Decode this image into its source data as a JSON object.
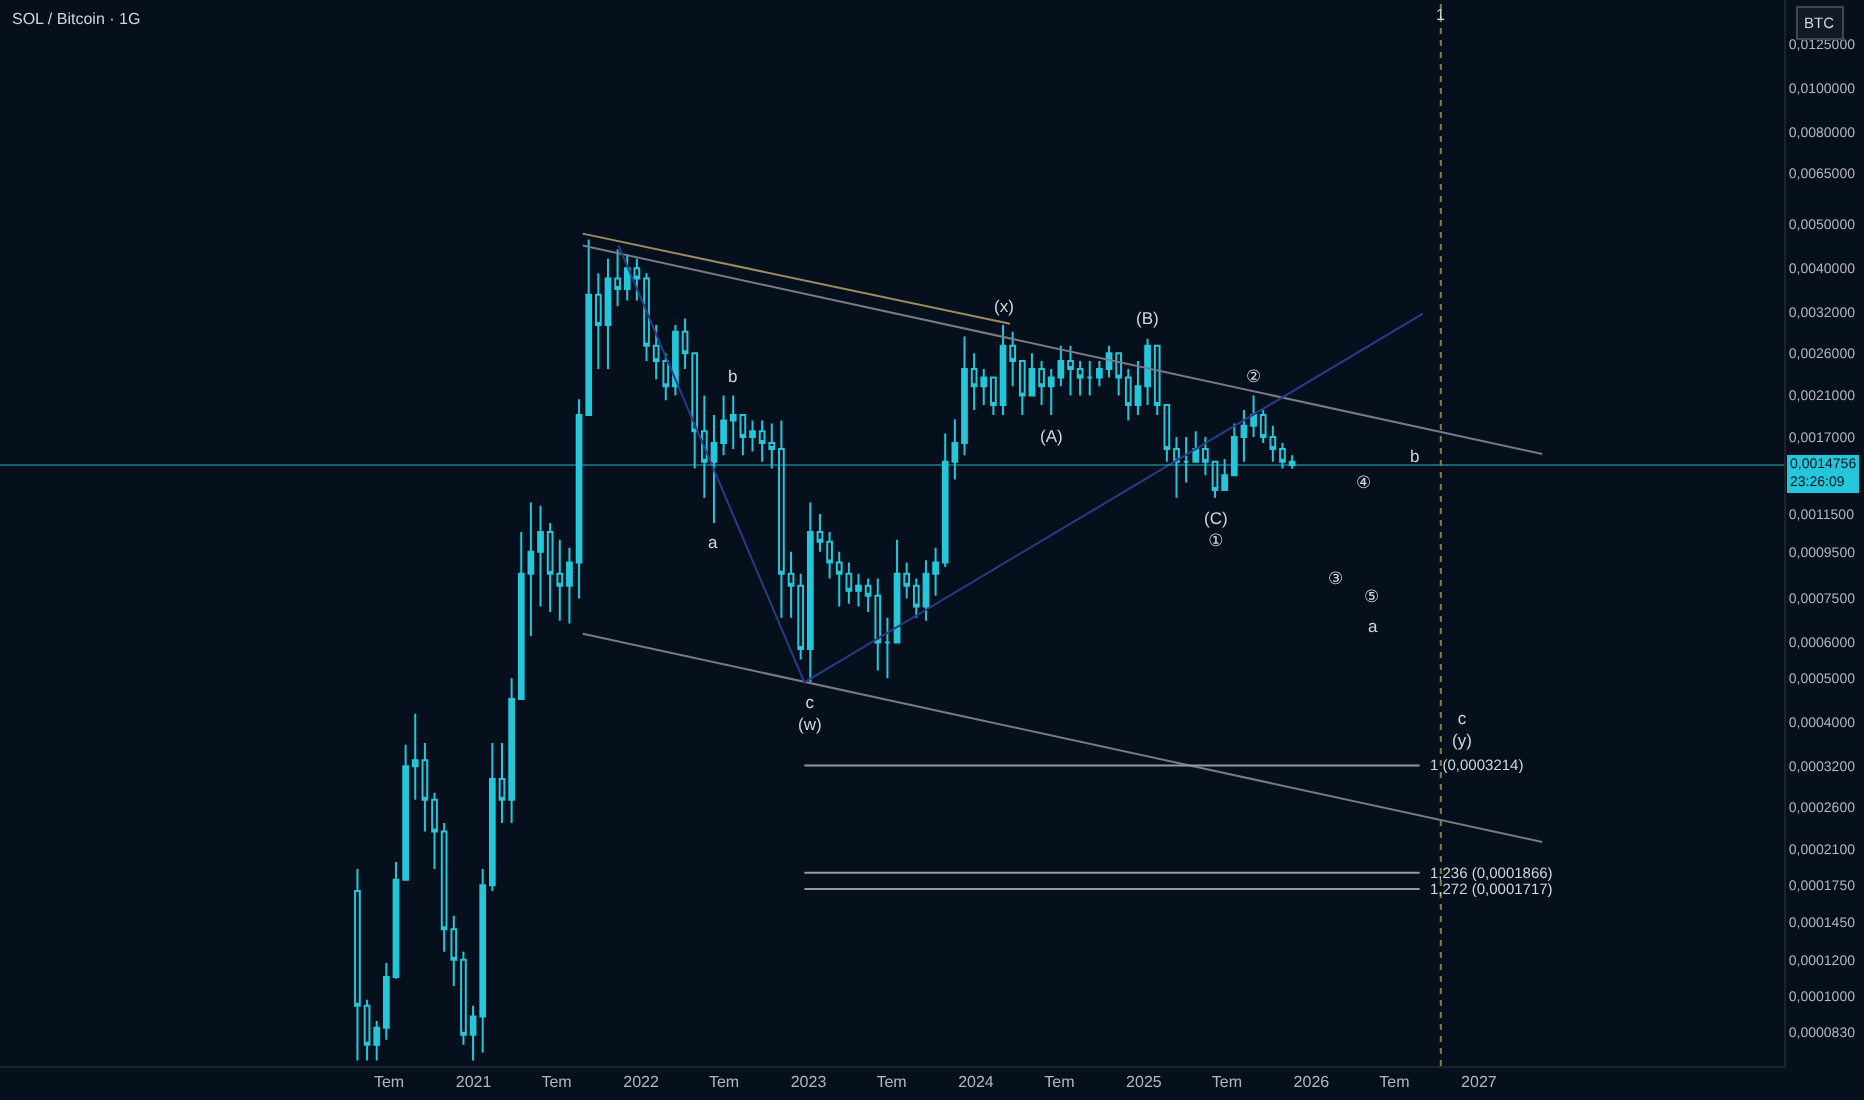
{
  "chart_data": {
    "type": "candlestick",
    "title": "SOL / Bitcoin · 1G",
    "ylabel": "BTC",
    "log": "y",
    "color": "#26c6da",
    "x": [
      "2020-04-23",
      "2020-05-14",
      "2020-06-04",
      "2020-06-25",
      "2020-07-16",
      "2020-08-06",
      "2020-08-27",
      "2020-09-17",
      "2020-10-08",
      "2020-10-29",
      "2020-11-19",
      "2020-12-10",
      "2020-12-31",
      "2021-01-21",
      "2021-02-11",
      "2021-03-04",
      "2021-03-25",
      "2021-04-15",
      "2021-05-06",
      "2021-05-27",
      "2021-06-17",
      "2021-07-08",
      "2021-07-29",
      "2021-08-19",
      "2021-09-09",
      "2021-09-30",
      "2021-10-21",
      "2021-11-11",
      "2021-12-02",
      "2021-12-23",
      "2022-01-13",
      "2022-02-03",
      "2022-02-24",
      "2022-03-17",
      "2022-04-07",
      "2022-04-28",
      "2022-05-19",
      "2022-06-09",
      "2022-06-30",
      "2022-07-21",
      "2022-08-11",
      "2022-09-01",
      "2022-09-22",
      "2022-10-13",
      "2022-11-03",
      "2022-11-24",
      "2022-12-15",
      "2023-01-05",
      "2023-01-26",
      "2023-02-16",
      "2023-03-09",
      "2023-03-30",
      "2023-04-20",
      "2023-05-11",
      "2023-06-01",
      "2023-06-22",
      "2023-07-13",
      "2023-08-03",
      "2023-08-24",
      "2023-09-14",
      "2023-10-05",
      "2023-10-26",
      "2023-11-16",
      "2023-12-07",
      "2023-12-28",
      "2024-01-18",
      "2024-02-08",
      "2024-02-29",
      "2024-03-21",
      "2024-04-11",
      "2024-05-02",
      "2024-05-23",
      "2024-06-13",
      "2024-07-04",
      "2024-07-25",
      "2024-08-15",
      "2024-09-05",
      "2024-09-26",
      "2024-10-17",
      "2024-11-07",
      "2024-11-28",
      "2024-12-19",
      "2025-01-09",
      "2025-01-30",
      "2025-02-20",
      "2025-03-13",
      "2025-04-03",
      "2025-04-24",
      "2025-05-15",
      "2025-06-05",
      "2025-06-26",
      "2025-07-17",
      "2025-08-07",
      "2025-08-28",
      "2025-09-18",
      "2025-10-09",
      "2025-10-30",
      "2025-11-20"
    ],
    "ohlc": [
      [
        0.00017,
        0.00019,
        7.2e-05,
        9.5e-05
      ],
      [
        9.5e-05,
        9.8e-05,
        7.2e-05,
        7.8e-05
      ],
      [
        7.8e-05,
        8.8e-05,
        7.2e-05,
        8.5e-05
      ],
      [
        8.5e-05,
        0.000118,
        8e-05,
        0.00011
      ],
      [
        0.00011,
        0.000197,
        0.000109,
        0.00018
      ],
      [
        0.00018,
        0.000357,
        0.00018,
        0.00032
      ],
      [
        0.00032,
        0.000418,
        0.00027,
        0.00033
      ],
      [
        0.00033,
        0.00036,
        0.00023,
        0.00027
      ],
      [
        0.00027,
        0.00028,
        0.00019,
        0.00023
      ],
      [
        0.00023,
        0.00024,
        0.000125,
        0.00014
      ],
      [
        0.00014,
        0.00015,
        0.000105,
        0.00012
      ],
      [
        0.00012,
        0.000125,
        7.8e-05,
        8.2e-05
      ],
      [
        8.2e-05,
        9.5e-05,
        7.2e-05,
        9e-05
      ],
      [
        9e-05,
        0.00019,
        7.5e-05,
        0.000175
      ],
      [
        0.000175,
        0.00036,
        0.00017,
        0.0003
      ],
      [
        0.0003,
        0.00036,
        0.00024,
        0.00027
      ],
      [
        0.00027,
        0.0005,
        0.00024,
        0.00045
      ],
      [
        0.00045,
        0.00105,
        0.00045,
        0.00085
      ],
      [
        0.00085,
        0.00122,
        0.00062,
        0.00095
      ],
      [
        0.00095,
        0.0012,
        0.00072,
        0.00105
      ],
      [
        0.00105,
        0.0011,
        0.0007,
        0.00085
      ],
      [
        0.00085,
        0.00101,
        0.00067,
        0.0008
      ],
      [
        0.0008,
        0.00097,
        0.00066,
        0.0009
      ],
      [
        0.0009,
        0.00206,
        0.00075,
        0.0019
      ],
      [
        0.0019,
        0.00463,
        0.0019,
        0.0035
      ],
      [
        0.0035,
        0.0039,
        0.0024,
        0.003
      ],
      [
        0.003,
        0.0042,
        0.0024,
        0.0038
      ],
      [
        0.0038,
        0.0044,
        0.0033,
        0.0036
      ],
      [
        0.0036,
        0.0043,
        0.0034,
        0.004
      ],
      [
        0.004,
        0.0042,
        0.0034,
        0.0038
      ],
      [
        0.0038,
        0.0039,
        0.0025,
        0.0027
      ],
      [
        0.0027,
        0.003,
        0.00228,
        0.0025
      ],
      [
        0.0025,
        0.0026,
        0.00205,
        0.0022
      ],
      [
        0.0022,
        0.003,
        0.0021,
        0.0029
      ],
      [
        0.0029,
        0.0031,
        0.0024,
        0.0026
      ],
      [
        0.0026,
        0.0026,
        0.00145,
        0.00175
      ],
      [
        0.00175,
        0.0021,
        0.00125,
        0.0015
      ],
      [
        0.0015,
        0.0019,
        0.0011,
        0.00165
      ],
      [
        0.00165,
        0.0021,
        0.00155,
        0.00185
      ],
      [
        0.00185,
        0.0021,
        0.0016,
        0.0019
      ],
      [
        0.0019,
        0.0019,
        0.00155,
        0.0017
      ],
      [
        0.0017,
        0.00185,
        0.00158,
        0.00175
      ],
      [
        0.00175,
        0.00185,
        0.0015,
        0.00165
      ],
      [
        0.00165,
        0.00182,
        0.00145,
        0.0016
      ],
      [
        0.0016,
        0.00185,
        0.00068,
        0.00085
      ],
      [
        0.00085,
        0.00095,
        0.00068,
        0.0008
      ],
      [
        0.0008,
        0.00085,
        0.00055,
        0.00058
      ],
      [
        0.00058,
        0.00122,
        0.00049,
        0.00105
      ],
      [
        0.00105,
        0.00115,
        0.00095,
        0.001
      ],
      [
        0.001,
        0.00105,
        0.00083,
        0.0009
      ],
      [
        0.0009,
        0.00095,
        0.00072,
        0.00085
      ],
      [
        0.00085,
        0.0009,
        0.00073,
        0.00078
      ],
      [
        0.00078,
        0.00085,
        0.00072,
        0.0008
      ],
      [
        0.0008,
        0.00083,
        0.0007,
        0.00076
      ],
      [
        0.00076,
        0.00083,
        0.00052,
        0.0006
      ],
      [
        0.0006,
        0.00068,
        0.0005,
        0.0006
      ],
      [
        0.0006,
        0.00101,
        0.0006,
        0.00085
      ],
      [
        0.00085,
        0.0009,
        0.00075,
        0.0008
      ],
      [
        0.0008,
        0.00083,
        0.00068,
        0.00072
      ],
      [
        0.00072,
        0.00091,
        0.00067,
        0.00085
      ],
      [
        0.00085,
        0.00097,
        0.00076,
        0.0009
      ],
      [
        0.0009,
        0.00173,
        0.00088,
        0.0015
      ],
      [
        0.0015,
        0.00186,
        0.00137,
        0.00165
      ],
      [
        0.00165,
        0.00283,
        0.00155,
        0.0024
      ],
      [
        0.0024,
        0.0026,
        0.00195,
        0.0022
      ],
      [
        0.0022,
        0.0024,
        0.002,
        0.0023
      ],
      [
        0.0023,
        0.0023,
        0.0019,
        0.002
      ],
      [
        0.002,
        0.003,
        0.0019,
        0.0027
      ],
      [
        0.0027,
        0.0029,
        0.0022,
        0.0025
      ],
      [
        0.0025,
        0.0025,
        0.0019,
        0.0021
      ],
      [
        0.0021,
        0.0026,
        0.0021,
        0.0024
      ],
      [
        0.0024,
        0.0025,
        0.002,
        0.0022
      ],
      [
        0.0022,
        0.0024,
        0.0019,
        0.0023
      ],
      [
        0.0023,
        0.0027,
        0.0022,
        0.0025
      ],
      [
        0.0025,
        0.0027,
        0.0021,
        0.0024
      ],
      [
        0.0024,
        0.0025,
        0.0021,
        0.0023
      ],
      [
        0.0023,
        0.0025,
        0.0021,
        0.0023
      ],
      [
        0.0023,
        0.0025,
        0.0022,
        0.0024
      ],
      [
        0.0024,
        0.0027,
        0.0023,
        0.0026
      ],
      [
        0.0026,
        0.0026,
        0.0021,
        0.0023
      ],
      [
        0.0023,
        0.0024,
        0.00185,
        0.002
      ],
      [
        0.002,
        0.0025,
        0.0019,
        0.0022
      ],
      [
        0.0022,
        0.0028,
        0.002,
        0.0027
      ],
      [
        0.0027,
        0.0027,
        0.0019,
        0.002
      ],
      [
        0.002,
        0.002,
        0.0015,
        0.0016
      ],
      [
        0.0016,
        0.0017,
        0.00125,
        0.0015
      ],
      [
        0.0015,
        0.0017,
        0.00135,
        0.0015
      ],
      [
        0.0015,
        0.00175,
        0.0015,
        0.0016
      ],
      [
        0.0016,
        0.0017,
        0.0014,
        0.0015
      ],
      [
        0.0015,
        0.0015,
        0.00125,
        0.0013
      ],
      [
        0.0013,
        0.00152,
        0.0013,
        0.0014
      ],
      [
        0.0014,
        0.00182,
        0.0014,
        0.0017
      ],
      [
        0.0017,
        0.00195,
        0.0015,
        0.0018
      ],
      [
        0.0018,
        0.0021,
        0.0017,
        0.0019
      ],
      [
        0.0019,
        0.00195,
        0.00165,
        0.0017
      ],
      [
        0.0017,
        0.0018,
        0.0015,
        0.0016
      ],
      [
        0.0016,
        0.00165,
        0.00145,
        0.0015
      ],
      [
        0.0015,
        0.00155,
        0.00145,
        0.0014756
      ]
    ],
    "series": [
      {
        "type": "line",
        "color": "#9c8c5c",
        "x": [
          "2021-08-27",
          "2024-03-15"
        ],
        "values": [
          0.00477,
          0.00302
        ]
      },
      {
        "type": "line",
        "color": "#787b86",
        "x": [
          "2021-08-27",
          "2027-05-19"
        ],
        "values": [
          0.00449,
          0.00156
        ]
      },
      {
        "type": "line",
        "color": "#787b86",
        "x": [
          "2021-08-27",
          "2027-05-19"
        ],
        "values": [
          0.000627,
          0.000218
        ]
      },
      {
        "type": "line",
        "color": "#2b3a87",
        "x": [
          "2021-11-13",
          "2022-12-23"
        ],
        "values": [
          0.00449,
          0.00049
        ]
      },
      {
        "type": "line",
        "color": "#2b3a87",
        "x": [
          "2022-12-23",
          "2026-09-01"
        ],
        "values": [
          0.00049,
          0.00318
        ]
      },
      {
        "type": "line",
        "name": "1 (0,0003214)",
        "color": "#9598a1",
        "x": [
          "2022-12-23",
          "2026-08-25"
        ],
        "values": [
          0.0003214,
          0.0003214
        ]
      },
      {
        "type": "line",
        "name": "1,236 (0,0001866)",
        "color": "#9598a1",
        "x": [
          "2022-12-23",
          "2026-08-25"
        ],
        "values": [
          0.0001866,
          0.0001866
        ]
      },
      {
        "type": "line",
        "name": "1,272 (0,0001717)",
        "color": "#9598a1",
        "x": [
          "2022-12-23",
          "2026-08-25"
        ],
        "values": [
          0.0001717,
          0.0001717
        ]
      }
    ],
    "xlim": [
      "2018-03-06",
      "2028-10-27"
    ],
    "ylim": [
      7e-05,
      0.0156
    ],
    "xticks": [
      {
        "value": "2020-07",
        "label": "Tem"
      },
      {
        "value": "2021",
        "label": "2021"
      },
      {
        "value": "2021-07",
        "label": "Tem"
      },
      {
        "value": "2022",
        "label": "2022"
      },
      {
        "value": "2022-07",
        "label": "Tem"
      },
      {
        "value": "2023",
        "label": "2023"
      },
      {
        "value": "2023-07",
        "label": "Tem"
      },
      {
        "value": "2024",
        "label": "2024"
      },
      {
        "value": "2024-07",
        "label": "Tem"
      },
      {
        "value": "2025",
        "label": "2025"
      },
      {
        "value": "2025-07",
        "label": "Tem"
      },
      {
        "value": "2026",
        "label": "2026"
      },
      {
        "value": "2026-07",
        "label": "Tem"
      },
      {
        "value": "2027",
        "label": "2027"
      }
    ],
    "yticks": [
      {
        "value": 0.0125,
        "label": "0,0125000"
      },
      {
        "value": 0.01,
        "label": "0,0100000"
      },
      {
        "value": 0.008,
        "label": "0,0080000"
      },
      {
        "value": 0.0065,
        "label": "0,0065000"
      },
      {
        "value": 0.005,
        "label": "0,0050000"
      },
      {
        "value": 0.004,
        "label": "0,0040000"
      },
      {
        "value": 0.0032,
        "label": "0,0032000"
      },
      {
        "value": 0.0026,
        "label": "0,0026000"
      },
      {
        "value": 0.0021,
        "label": "0,0021000"
      },
      {
        "value": 0.0017,
        "label": "0,0017000"
      },
      {
        "value": 0.00115,
        "label": "0,0011500"
      },
      {
        "value": 0.00095,
        "label": "0,0009500"
      },
      {
        "value": 0.00075,
        "label": "0,0007500"
      },
      {
        "value": 0.0006,
        "label": "0,0006000"
      },
      {
        "value": 0.0005,
        "label": "0,0005000"
      },
      {
        "value": 0.0004,
        "label": "0,0004000"
      },
      {
        "value": 0.00032,
        "label": "0,0003200"
      },
      {
        "value": 0.00026,
        "label": "0,0002600"
      },
      {
        "value": 0.00021,
        "label": "0,0002100"
      },
      {
        "value": 0.000175,
        "label": "0,0001750"
      },
      {
        "value": 0.000145,
        "label": "0,0001450"
      },
      {
        "value": 0.00012,
        "label": "0,0001200"
      },
      {
        "value": 0.0001,
        "label": "0,0001000"
      },
      {
        "value": 8.3e-05,
        "label": "0,0000830"
      }
    ],
    "ref_lines": [
      {
        "axis": "y",
        "value": 0.0014756,
        "label": "0,0014756\n23:26:09",
        "color": "#26c6da"
      },
      {
        "axis": "x",
        "value": "2026-10-10",
        "label": "1",
        "color": "#8c7a4b",
        "line_style": "dotted"
      }
    ],
    "annotations": [
      {
        "text": "b",
        "x": "2022-07-21",
        "y": 0.0021
      },
      {
        "text": "a",
        "x": "2022-06-09",
        "y": 0.0011
      },
      {
        "text": "c\n(w)",
        "x": "2023-01-05",
        "y": 0.00049
      },
      {
        "text": "(x)",
        "x": "2024-02-29",
        "y": 0.003
      },
      {
        "text": "(A)",
        "x": "2024-06-13",
        "y": 0.0019
      },
      {
        "text": "(B)",
        "x": "2025-01-09",
        "y": 0.0028
      },
      {
        "text": "(C)\n①",
        "x": "2025-06-05",
        "y": 0.00125
      },
      {
        "text": "②",
        "x": "2025-08-28",
        "y": 0.0021
      },
      {
        "text": "b",
        "x": "2026-08-14",
        "y": 0.00155
      },
      "③",
      "④",
      "⑤",
      "a",
      "c\n(y)"
    ]
  }
}
